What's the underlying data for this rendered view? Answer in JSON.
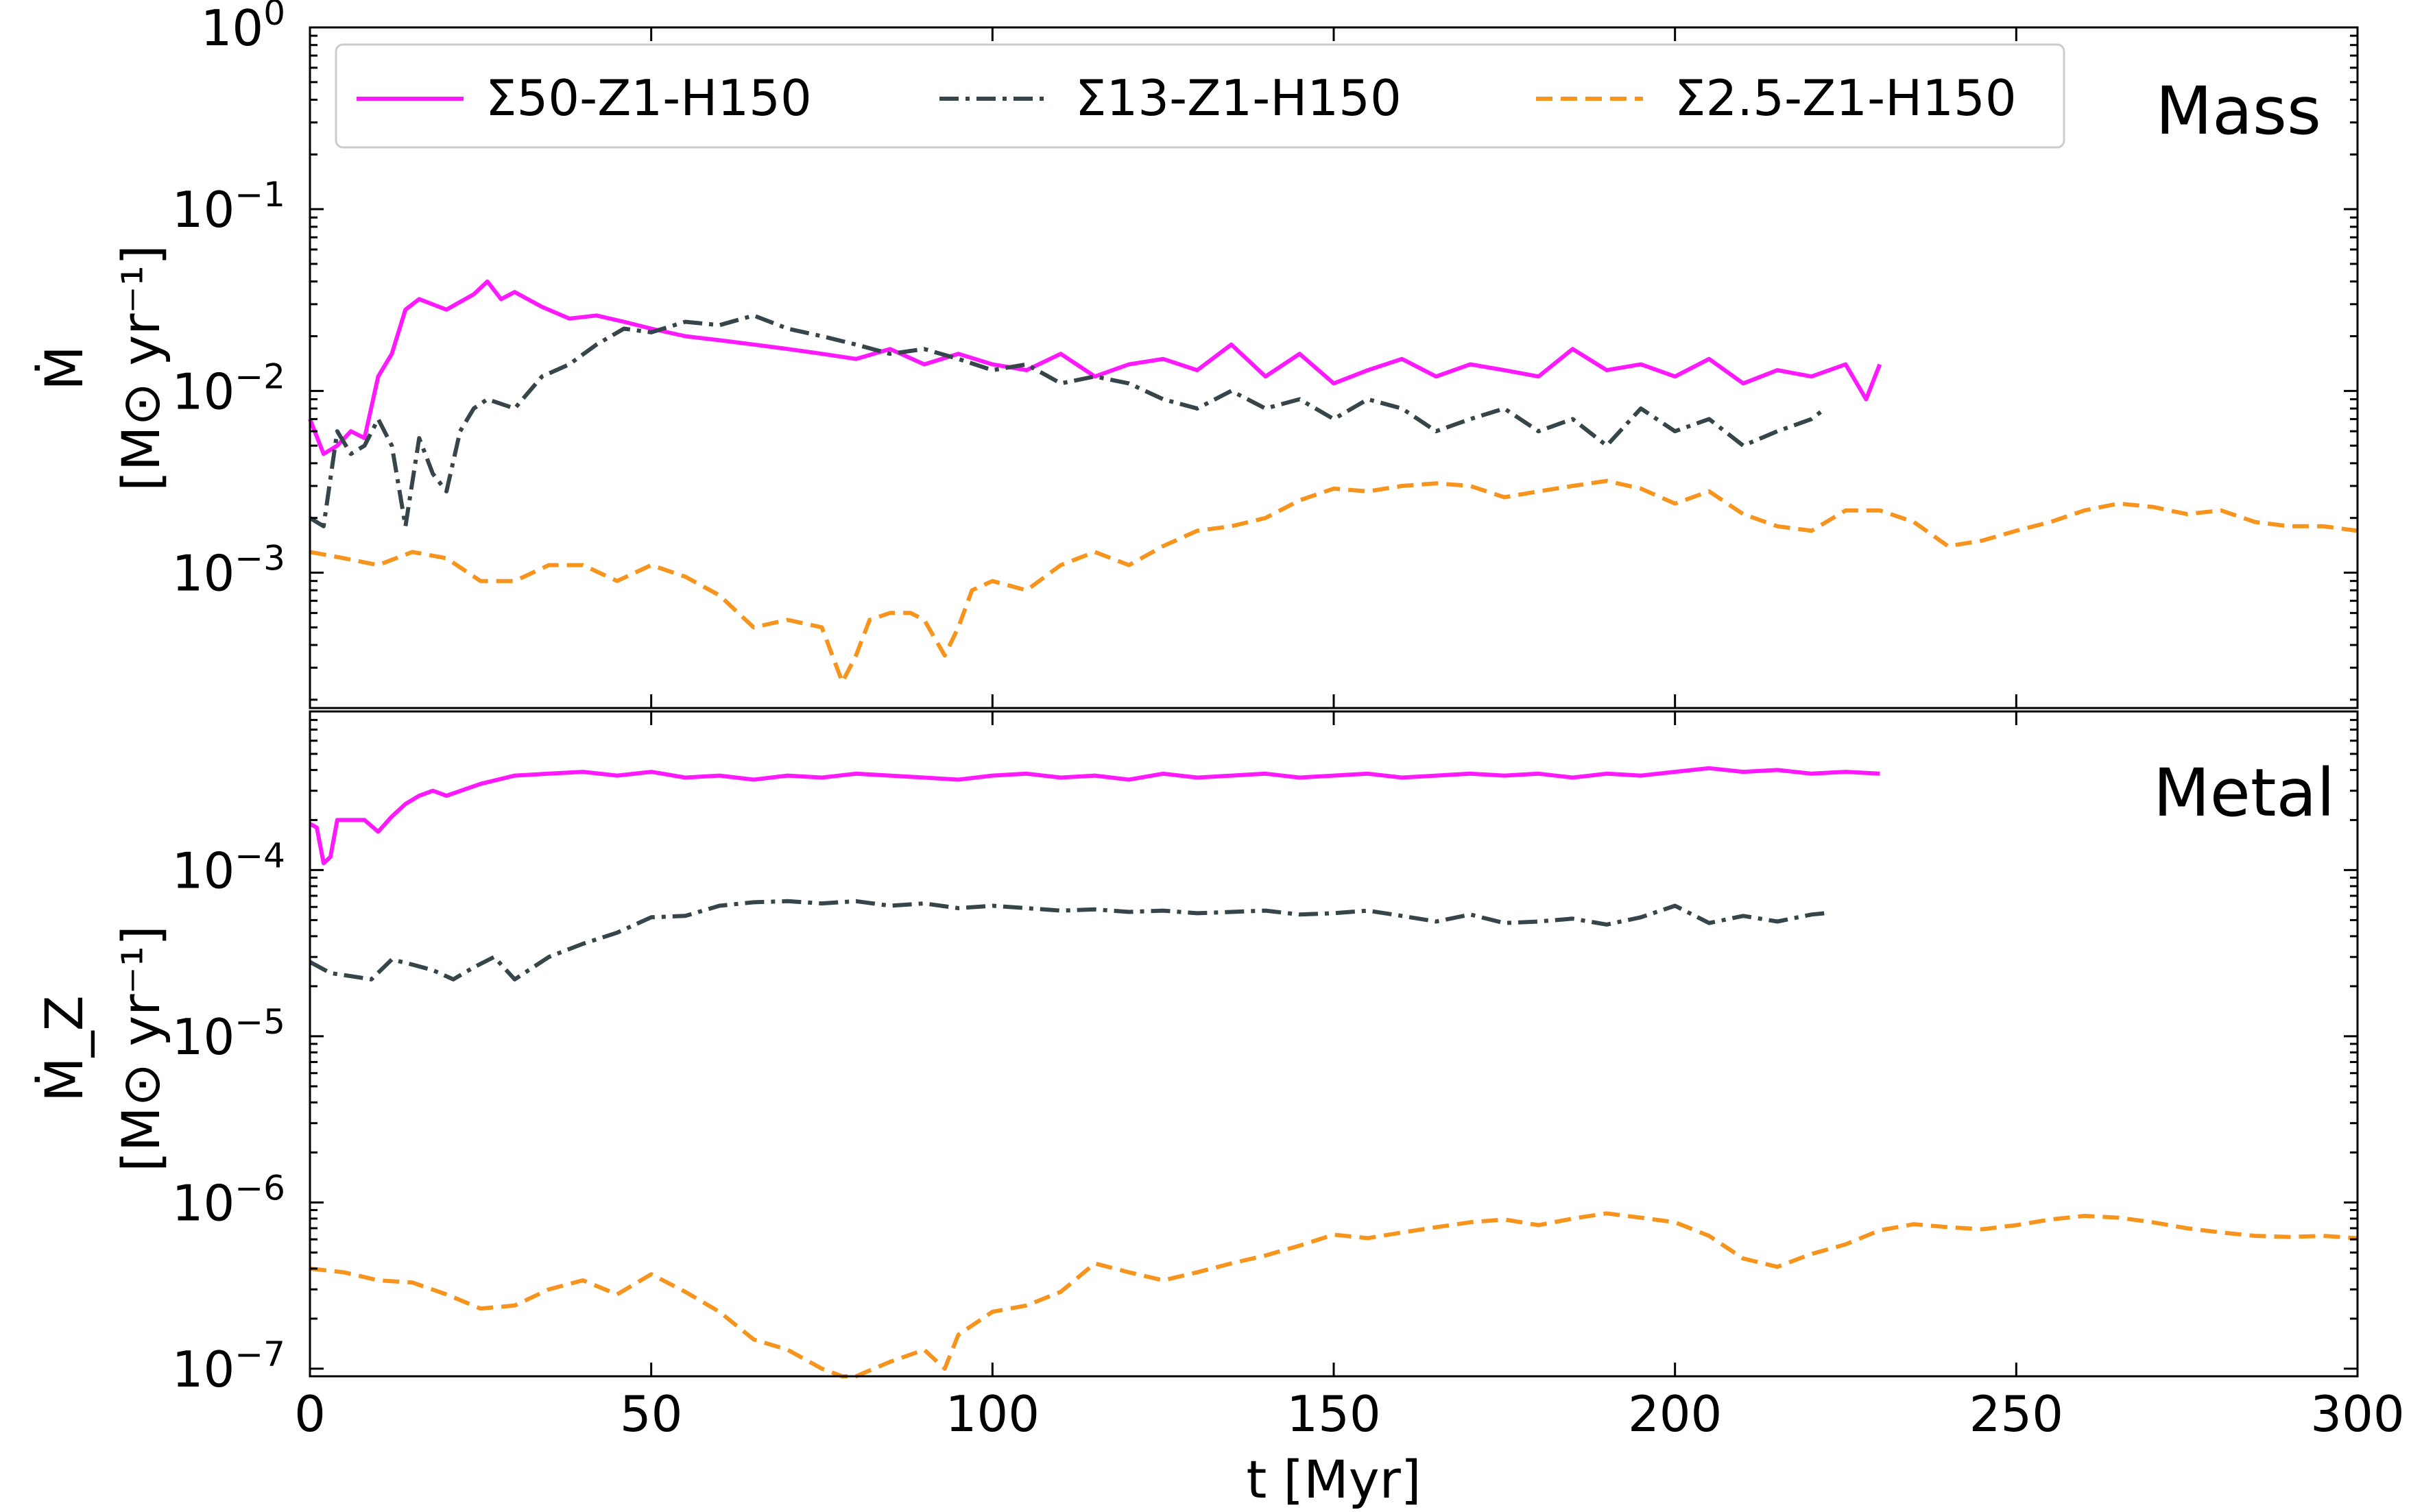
{
  "chart_data": [
    {
      "type": "line",
      "panel_label": "Mass",
      "ylabel_line1": "Ṁ",
      "ylabel_line2": "[M⊙ yr⁻¹]",
      "yscale": "log",
      "ylim": [
        0.00018,
        1
      ],
      "xlim": [
        0,
        300
      ],
      "yticks": [
        {
          "value": 0.001,
          "base": "10",
          "exp": "−3"
        },
        {
          "value": 0.01,
          "base": "10",
          "exp": "−2"
        },
        {
          "value": 0.1,
          "base": "10",
          "exp": "−1"
        },
        {
          "value": 1,
          "base": "10",
          "exp": "0"
        }
      ],
      "legend": [
        "Σ50-Z1-H150",
        "Σ13-Z1-H150",
        "Σ2.5-Z1-H150"
      ],
      "legend_position": "top-left",
      "series": [
        {
          "name": "Σ50-Z1-H150",
          "color": "#ff19ff",
          "dash": "solid",
          "x": [
            0,
            2,
            4,
            6,
            8,
            10,
            12,
            14,
            16,
            20,
            24,
            26,
            28,
            30,
            34,
            38,
            42,
            46,
            50,
            55,
            60,
            65,
            70,
            75,
            80,
            85,
            90,
            95,
            100,
            105,
            110,
            115,
            120,
            125,
            130,
            135,
            140,
            145,
            150,
            155,
            160,
            165,
            170,
            175,
            180,
            185,
            190,
            195,
            200,
            205,
            210,
            215,
            220,
            225,
            228,
            230
          ],
          "y": [
            0.007,
            0.0045,
            0.005,
            0.006,
            0.0055,
            0.012,
            0.016,
            0.028,
            0.032,
            0.028,
            0.034,
            0.04,
            0.032,
            0.035,
            0.029,
            0.025,
            0.026,
            0.024,
            0.022,
            0.02,
            0.019,
            0.018,
            0.017,
            0.016,
            0.015,
            0.017,
            0.014,
            0.016,
            0.014,
            0.013,
            0.016,
            0.012,
            0.014,
            0.015,
            0.013,
            0.018,
            0.012,
            0.016,
            0.011,
            0.013,
            0.015,
            0.012,
            0.014,
            0.013,
            0.012,
            0.017,
            0.013,
            0.014,
            0.012,
            0.015,
            0.011,
            0.013,
            0.012,
            0.014,
            0.009,
            0.014
          ]
        },
        {
          "name": "Σ13-Z1-H150",
          "color": "#36454a",
          "dash": "dashdot",
          "x": [
            0,
            2,
            4,
            6,
            8,
            10,
            12,
            14,
            16,
            18,
            20,
            22,
            24,
            26,
            30,
            34,
            38,
            42,
            46,
            50,
            55,
            60,
            65,
            70,
            75,
            80,
            85,
            90,
            95,
            100,
            105,
            110,
            115,
            120,
            125,
            130,
            135,
            140,
            145,
            150,
            155,
            160,
            165,
            170,
            175,
            180,
            185,
            190,
            195,
            200,
            205,
            210,
            215,
            220,
            222
          ],
          "y": [
            0.002,
            0.0018,
            0.006,
            0.0045,
            0.005,
            0.007,
            0.005,
            0.0018,
            0.0055,
            0.0035,
            0.0028,
            0.006,
            0.008,
            0.009,
            0.008,
            0.012,
            0.014,
            0.018,
            0.022,
            0.021,
            0.024,
            0.023,
            0.026,
            0.022,
            0.02,
            0.018,
            0.016,
            0.017,
            0.015,
            0.013,
            0.014,
            0.011,
            0.012,
            0.011,
            0.009,
            0.008,
            0.01,
            0.008,
            0.009,
            0.007,
            0.009,
            0.008,
            0.006,
            0.007,
            0.008,
            0.006,
            0.007,
            0.005,
            0.008,
            0.006,
            0.007,
            0.005,
            0.006,
            0.007,
            0.008
          ]
        },
        {
          "name": "Σ2.5-Z1-H150",
          "color": "#f7941d",
          "dash": "dashed",
          "x": [
            0,
            5,
            10,
            15,
            20,
            25,
            30,
            35,
            40,
            45,
            50,
            55,
            60,
            65,
            70,
            75,
            78,
            80,
            82,
            85,
            88,
            90,
            93,
            95,
            97,
            100,
            105,
            110,
            115,
            120,
            125,
            130,
            135,
            140,
            145,
            150,
            155,
            160,
            165,
            170,
            175,
            180,
            185,
            190,
            195,
            200,
            205,
            210,
            215,
            220,
            225,
            230,
            235,
            240,
            245,
            250,
            255,
            260,
            265,
            270,
            275,
            280,
            285,
            290,
            295,
            300
          ],
          "y": [
            0.0013,
            0.0012,
            0.0011,
            0.0013,
            0.0012,
            0.0009,
            0.0009,
            0.0011,
            0.0011,
            0.0009,
            0.0011,
            0.00095,
            0.00075,
            0.0005,
            0.00055,
            0.0005,
            0.00025,
            0.00035,
            0.00055,
            0.0006,
            0.0006,
            0.00055,
            0.00035,
            0.0005,
            0.0008,
            0.0009,
            0.0008,
            0.0011,
            0.0013,
            0.0011,
            0.0014,
            0.0017,
            0.0018,
            0.002,
            0.0025,
            0.0029,
            0.0028,
            0.003,
            0.0031,
            0.003,
            0.0026,
            0.0028,
            0.003,
            0.0032,
            0.0029,
            0.0024,
            0.0028,
            0.0021,
            0.0018,
            0.0017,
            0.0022,
            0.0022,
            0.0019,
            0.0014,
            0.0015,
            0.0017,
            0.0019,
            0.0022,
            0.0024,
            0.0023,
            0.0021,
            0.0022,
            0.0019,
            0.0018,
            0.0018,
            0.0017
          ]
        }
      ]
    },
    {
      "type": "line",
      "panel_label": "Metal",
      "ylabel_line1": "Ṁ_Z",
      "ylabel_line2": "[M⊙ yr⁻¹]",
      "yscale": "log",
      "ylim": [
        9e-08,
        0.0009
      ],
      "xlim": [
        0,
        300
      ],
      "xlabel": "t [Myr]",
      "xticks": [
        0,
        50,
        100,
        150,
        200,
        250,
        300
      ],
      "yticks": [
        {
          "value": 1e-07,
          "base": "10",
          "exp": "−7"
        },
        {
          "value": 1e-06,
          "base": "10",
          "exp": "−6"
        },
        {
          "value": 1e-05,
          "base": "10",
          "exp": "−5"
        },
        {
          "value": 0.0001,
          "base": "10",
          "exp": "−4"
        }
      ],
      "series": [
        {
          "name": "Σ50-Z1-H150",
          "color": "#ff19ff",
          "dash": "solid",
          "x": [
            0,
            1,
            2,
            3,
            4,
            5,
            8,
            10,
            12,
            14,
            16,
            18,
            20,
            25,
            30,
            35,
            40,
            45,
            50,
            55,
            60,
            65,
            70,
            75,
            80,
            85,
            90,
            95,
            100,
            105,
            110,
            115,
            120,
            125,
            130,
            135,
            140,
            145,
            150,
            155,
            160,
            165,
            170,
            175,
            180,
            185,
            190,
            195,
            200,
            205,
            210,
            215,
            220,
            225,
            230
          ],
          "y": [
            0.00019,
            0.00018,
            0.00011,
            0.00012,
            0.0002,
            0.0002,
            0.0002,
            0.00017,
            0.00021,
            0.00025,
            0.00028,
            0.0003,
            0.00028,
            0.00033,
            0.00037,
            0.00038,
            0.00039,
            0.00037,
            0.00039,
            0.00036,
            0.00037,
            0.00035,
            0.00037,
            0.00036,
            0.00038,
            0.00037,
            0.00036,
            0.00035,
            0.00037,
            0.00038,
            0.00036,
            0.00037,
            0.00035,
            0.00038,
            0.00036,
            0.00037,
            0.00038,
            0.00036,
            0.00037,
            0.00038,
            0.00036,
            0.00037,
            0.00038,
            0.00037,
            0.00038,
            0.00036,
            0.00038,
            0.00037,
            0.00039,
            0.00041,
            0.00039,
            0.0004,
            0.00038,
            0.00039,
            0.00038
          ]
        },
        {
          "name": "Σ13-Z1-H150",
          "color": "#36454a",
          "dash": "dashdot",
          "x": [
            0,
            3,
            6,
            9,
            12,
            15,
            18,
            21,
            24,
            27,
            30,
            35,
            40,
            45,
            50,
            55,
            60,
            65,
            70,
            75,
            80,
            85,
            90,
            95,
            100,
            105,
            110,
            115,
            120,
            125,
            130,
            135,
            140,
            145,
            150,
            155,
            160,
            165,
            170,
            175,
            180,
            185,
            190,
            195,
            200,
            205,
            210,
            215,
            220,
            222
          ],
          "y": [
            2.8e-05,
            2.4e-05,
            2.3e-05,
            2.2e-05,
            2.9e-05,
            2.7e-05,
            2.5e-05,
            2.2e-05,
            2.6e-05,
            3e-05,
            2.2e-05,
            3e-05,
            3.6e-05,
            4.2e-05,
            5.2e-05,
            5.3e-05,
            6.1e-05,
            6.4e-05,
            6.5e-05,
            6.3e-05,
            6.5e-05,
            6.1e-05,
            6.3e-05,
            5.9e-05,
            6.1e-05,
            5.9e-05,
            5.7e-05,
            5.8e-05,
            5.6e-05,
            5.7e-05,
            5.5e-05,
            5.6e-05,
            5.7e-05,
            5.4e-05,
            5.5e-05,
            5.7e-05,
            5.3e-05,
            4.9e-05,
            5.4e-05,
            4.8e-05,
            4.9e-05,
            5.1e-05,
            4.7e-05,
            5.2e-05,
            6.1e-05,
            4.8e-05,
            5.3e-05,
            4.9e-05,
            5.4e-05,
            5.5e-05
          ]
        },
        {
          "name": "Σ2.5-Z1-H150",
          "color": "#f7941d",
          "dash": "dashed",
          "x": [
            0,
            5,
            10,
            15,
            20,
            25,
            30,
            35,
            40,
            45,
            50,
            55,
            60,
            65,
            70,
            75,
            78,
            80,
            85,
            90,
            93,
            95,
            100,
            105,
            110,
            115,
            120,
            125,
            130,
            135,
            140,
            145,
            150,
            155,
            160,
            165,
            170,
            175,
            180,
            185,
            190,
            195,
            200,
            205,
            210,
            215,
            220,
            225,
            230,
            235,
            240,
            245,
            250,
            255,
            260,
            265,
            270,
            275,
            280,
            285,
            290,
            295,
            300
          ],
          "y": [
            4e-07,
            3.8e-07,
            3.4e-07,
            3.3e-07,
            2.8e-07,
            2.3e-07,
            2.4e-07,
            3e-07,
            3.4e-07,
            2.8e-07,
            3.7e-07,
            2.9e-07,
            2.2e-07,
            1.5e-07,
            1.3e-07,
            1e-07,
            7.2e-08,
            8.5e-08,
            1.1e-07,
            1.3e-07,
            1e-07,
            1.6e-07,
            2.2e-07,
            2.4e-07,
            2.9e-07,
            4.3e-07,
            3.8e-07,
            3.4e-07,
            3.8e-07,
            4.3e-07,
            4.8e-07,
            5.5e-07,
            6.4e-07,
            6.1e-07,
            6.6e-07,
            7.1e-07,
            7.6e-07,
            7.9e-07,
            7.3e-07,
            8e-07,
            8.6e-07,
            8.1e-07,
            7.6e-07,
            6.3e-07,
            4.6e-07,
            4.1e-07,
            4.9e-07,
            5.6e-07,
            6.8e-07,
            7.4e-07,
            7.1e-07,
            6.9e-07,
            7.3e-07,
            7.9e-07,
            8.3e-07,
            8.1e-07,
            7.6e-07,
            7e-07,
            6.6e-07,
            6.3e-07,
            6.2e-07,
            6.3e-07,
            6.1e-07
          ]
        }
      ]
    }
  ]
}
